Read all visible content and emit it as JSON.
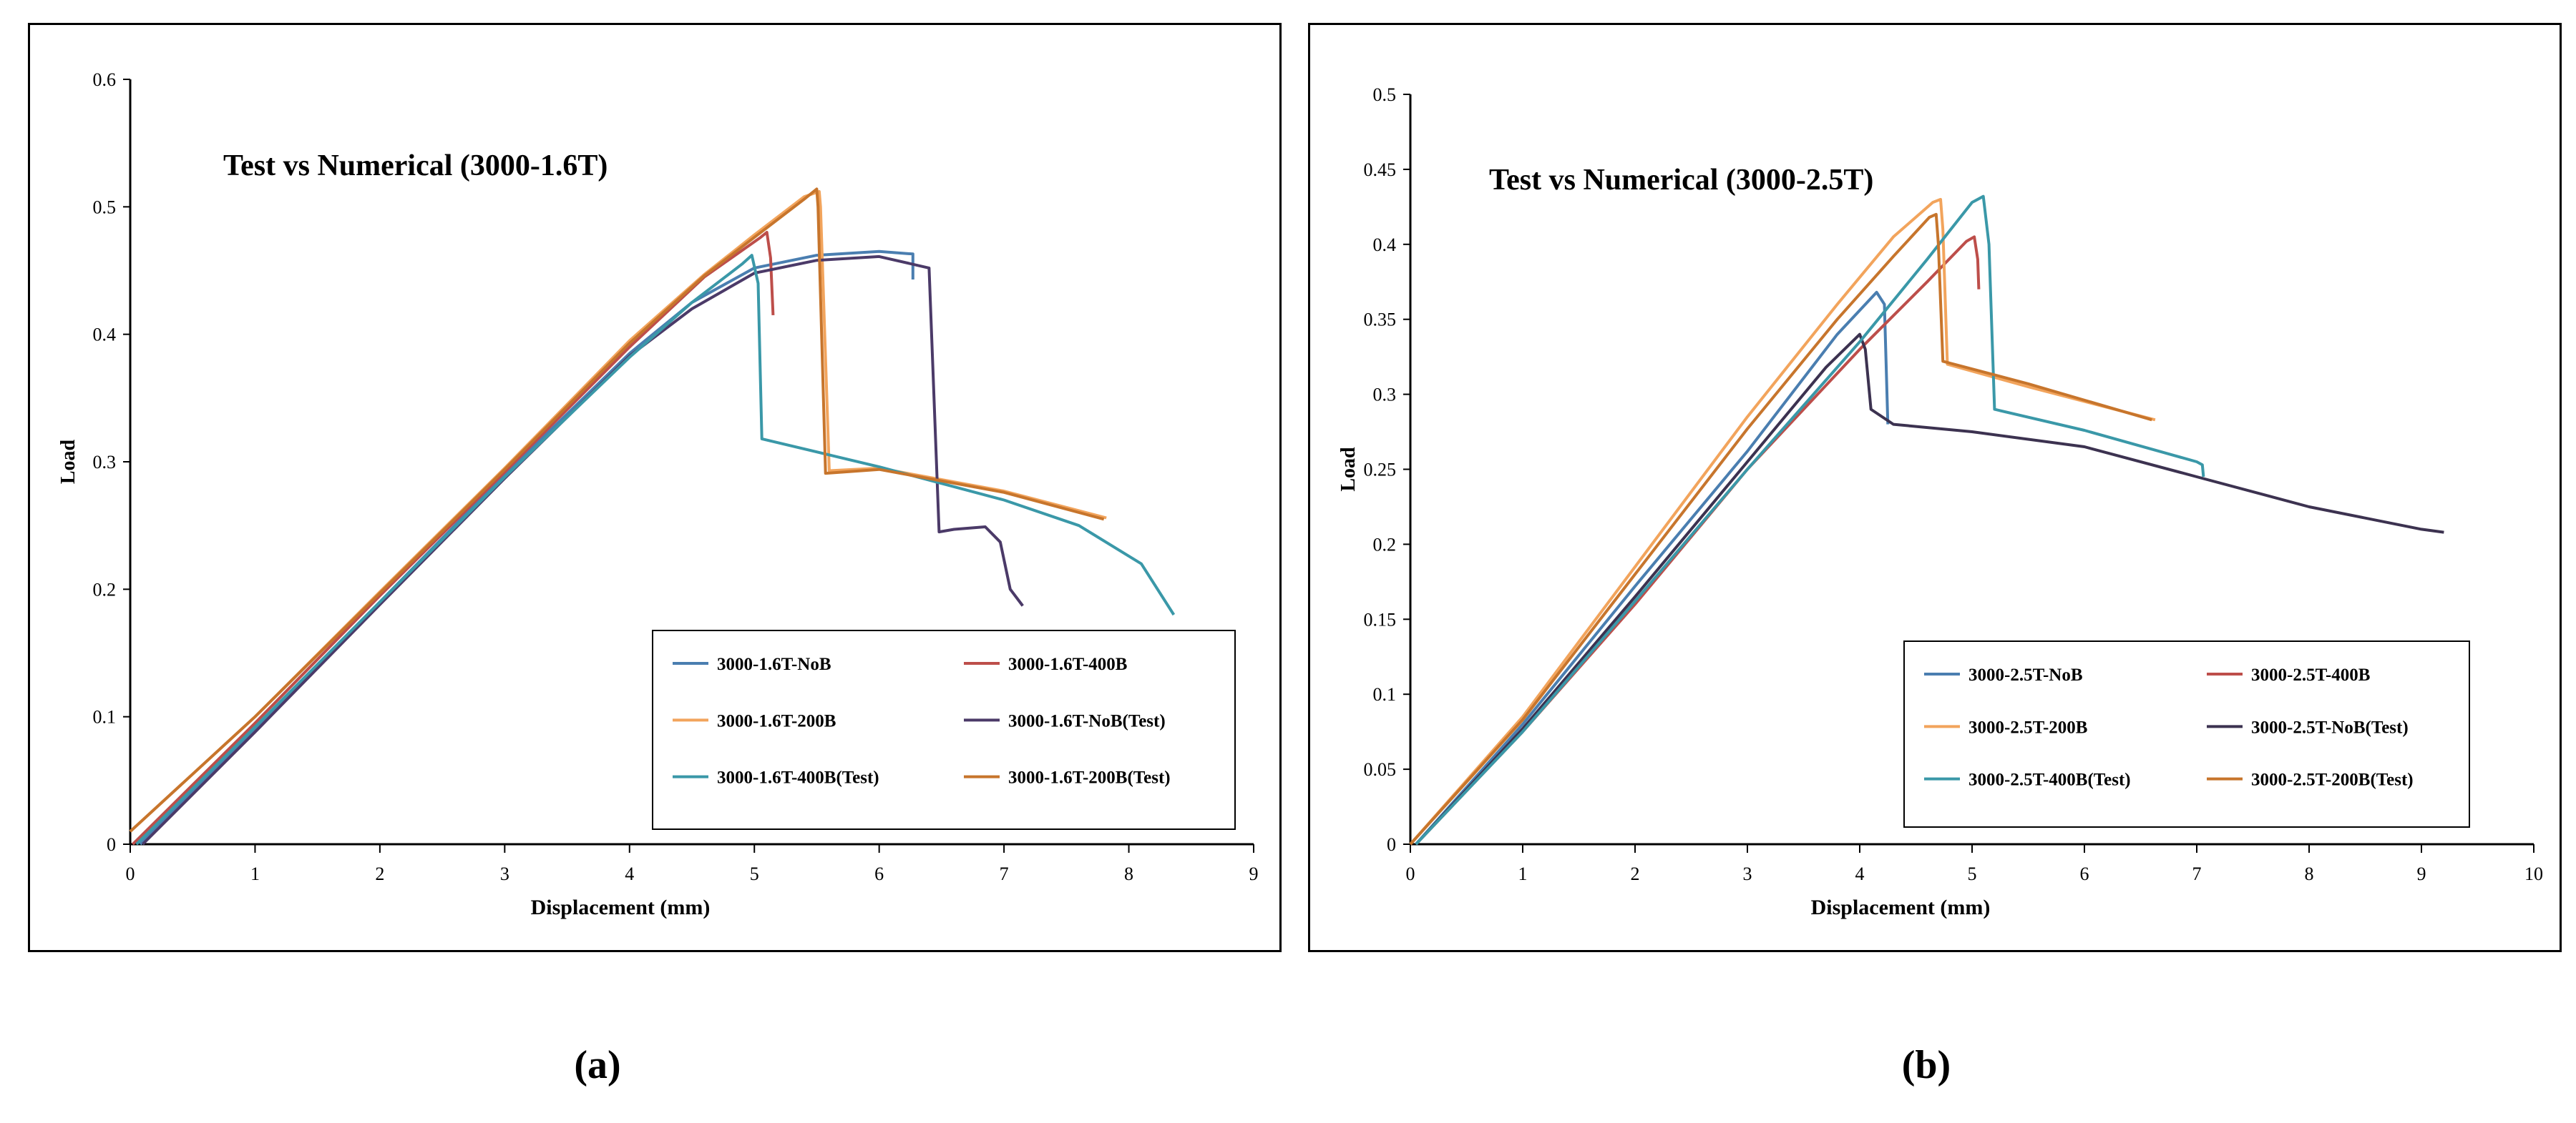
{
  "chart_data": [
    {
      "type": "line",
      "title": "Test vs Numerical (3000-1.6T)",
      "xlabel": "Displacement  (mm)",
      "ylabel": "Load",
      "xlim": [
        0,
        9
      ],
      "ylim": [
        0,
        0.6
      ],
      "xticks": [
        "0",
        "1",
        "2",
        "3",
        "4",
        "5",
        "6",
        "7",
        "8",
        "9"
      ],
      "yticks": [
        "0",
        "0.1",
        "0.2",
        "0.3",
        "0.4",
        "0.5",
        "0.6"
      ],
      "legend_position": "bottom-right",
      "series": [
        {
          "name": "3000-1.6T-NoB",
          "color": "#4a7eb0",
          "points": [
            [
              0.08,
              0
            ],
            [
              1,
              0.09
            ],
            [
              2,
              0.19
            ],
            [
              3,
              0.29
            ],
            [
              4,
              0.385
            ],
            [
              4.5,
              0.425
            ],
            [
              5,
              0.452
            ],
            [
              5.5,
              0.462
            ],
            [
              6,
              0.465
            ],
            [
              6.27,
              0.463
            ],
            [
              6.27,
              0.443
            ]
          ]
        },
        {
          "name": "3000-1.6T-400B",
          "color": "#bd4e4a",
          "points": [
            [
              0.02,
              0
            ],
            [
              1,
              0.095
            ],
            [
              2,
              0.195
            ],
            [
              3,
              0.292
            ],
            [
              4,
              0.39
            ],
            [
              4.6,
              0.445
            ],
            [
              5.05,
              0.476
            ],
            [
              5.1,
              0.48
            ],
            [
              5.13,
              0.46
            ],
            [
              5.15,
              0.415
            ]
          ]
        },
        {
          "name": "3000-1.6T-200B",
          "color": "#f2a45c",
          "points": [
            [
              0,
              0.01
            ],
            [
              1,
              0.1
            ],
            [
              2,
              0.198
            ],
            [
              3,
              0.295
            ],
            [
              4,
              0.395
            ],
            [
              4.6,
              0.447
            ],
            [
              5,
              0.478
            ],
            [
              5.4,
              0.508
            ],
            [
              5.52,
              0.512
            ],
            [
              5.53,
              0.5
            ],
            [
              5.6,
              0.293
            ],
            [
              6,
              0.295
            ],
            [
              7,
              0.277
            ],
            [
              7.82,
              0.256
            ]
          ]
        },
        {
          "name": "3000-1.6T-NoB(Test)",
          "color": "#4b3a68",
          "points": [
            [
              0.1,
              0
            ],
            [
              1,
              0.088
            ],
            [
              2,
              0.188
            ],
            [
              3,
              0.287
            ],
            [
              4,
              0.383
            ],
            [
              4.5,
              0.42
            ],
            [
              5,
              0.448
            ],
            [
              5.5,
              0.458
            ],
            [
              6,
              0.461
            ],
            [
              6.4,
              0.452
            ],
            [
              6.48,
              0.245
            ],
            [
              6.6,
              0.247
            ],
            [
              6.85,
              0.249
            ],
            [
              6.97,
              0.237
            ],
            [
              7.05,
              0.2
            ],
            [
              7.15,
              0.187
            ]
          ]
        },
        {
          "name": "3000-1.6T-400B(Test)",
          "color": "#3a98a8",
          "points": [
            [
              0.05,
              0
            ],
            [
              1,
              0.092
            ],
            [
              2,
              0.19
            ],
            [
              3,
              0.288
            ],
            [
              4,
              0.382
            ],
            [
              4.5,
              0.425
            ],
            [
              4.9,
              0.455
            ],
            [
              4.98,
              0.462
            ],
            [
              5.03,
              0.44
            ],
            [
              5.06,
              0.318
            ],
            [
              6,
              0.296
            ],
            [
              7,
              0.27
            ],
            [
              7.6,
              0.25
            ],
            [
              8.1,
              0.22
            ],
            [
              8.36,
              0.18
            ]
          ]
        },
        {
          "name": "3000-1.6T-200B(Test)",
          "color": "#c7752c",
          "points": [
            [
              0,
              0.01
            ],
            [
              1,
              0.1
            ],
            [
              2,
              0.197
            ],
            [
              3,
              0.294
            ],
            [
              4,
              0.393
            ],
            [
              4.6,
              0.446
            ],
            [
              5,
              0.476
            ],
            [
              5.4,
              0.506
            ],
            [
              5.5,
              0.514
            ],
            [
              5.51,
              0.5
            ],
            [
              5.57,
              0.291
            ],
            [
              6,
              0.294
            ],
            [
              7,
              0.276
            ],
            [
              7.8,
              0.255
            ]
          ]
        }
      ]
    },
    {
      "type": "line",
      "title": "Test vs Numerical (3000-2.5T)",
      "xlabel": "Displacement  (mm)",
      "ylabel": "Load",
      "xlim": [
        0,
        10
      ],
      "ylim": [
        0,
        0.5
      ],
      "xticks": [
        "0",
        "1",
        "2",
        "3",
        "4",
        "5",
        "6",
        "7",
        "8",
        "9",
        "10"
      ],
      "yticks": [
        "0",
        "0.05",
        "0.1",
        "0.15",
        "0.2",
        "0.25",
        "0.3",
        "0.35",
        "0.4",
        "0.45",
        "0.5"
      ],
      "legend_position": "bottom-right",
      "series": [
        {
          "name": "3000-2.5T-NoB",
          "color": "#4a7eb0",
          "points": [
            [
              0.05,
              0
            ],
            [
              1,
              0.08
            ],
            [
              2,
              0.172
            ],
            [
              3,
              0.262
            ],
            [
              3.8,
              0.34
            ],
            [
              4.15,
              0.368
            ],
            [
              4.22,
              0.36
            ],
            [
              4.25,
              0.28
            ]
          ]
        },
        {
          "name": "3000-2.5T-400B",
          "color": "#bd4e4a",
          "points": [
            [
              0.05,
              0
            ],
            [
              1,
              0.075
            ],
            [
              2,
              0.16
            ],
            [
              3,
              0.25
            ],
            [
              4,
              0.33
            ],
            [
              4.6,
              0.375
            ],
            [
              4.95,
              0.402
            ],
            [
              5.02,
              0.405
            ],
            [
              5.05,
              0.39
            ],
            [
              5.06,
              0.37
            ]
          ]
        },
        {
          "name": "3000-2.5T-200B",
          "color": "#f2a45c",
          "points": [
            [
              0,
              0
            ],
            [
              1,
              0.085
            ],
            [
              2,
              0.185
            ],
            [
              3,
              0.285
            ],
            [
              3.8,
              0.36
            ],
            [
              4.3,
              0.405
            ],
            [
              4.65,
              0.428
            ],
            [
              4.72,
              0.43
            ],
            [
              4.74,
              0.41
            ],
            [
              4.78,
              0.32
            ],
            [
              5.5,
              0.305
            ],
            [
              6.63,
              0.283
            ]
          ]
        },
        {
          "name": "3000-2.5T-NoB(Test)",
          "color": "#3c3250",
          "points": [
            [
              0.05,
              0
            ],
            [
              1,
              0.077
            ],
            [
              2,
              0.165
            ],
            [
              3,
              0.255
            ],
            [
              3.7,
              0.318
            ],
            [
              4,
              0.34
            ],
            [
              4.05,
              0.33
            ],
            [
              4.1,
              0.29
            ],
            [
              4.3,
              0.28
            ],
            [
              5,
              0.275
            ],
            [
              6,
              0.265
            ],
            [
              7,
              0.245
            ],
            [
              8,
              0.225
            ],
            [
              9,
              0.21
            ],
            [
              9.2,
              0.208
            ]
          ]
        },
        {
          "name": "3000-2.5T-400B(Test)",
          "color": "#3a98a8",
          "points": [
            [
              0.05,
              0
            ],
            [
              1,
              0.075
            ],
            [
              2,
              0.162
            ],
            [
              3,
              0.25
            ],
            [
              4,
              0.335
            ],
            [
              4.6,
              0.39
            ],
            [
              5,
              0.428
            ],
            [
              5.1,
              0.432
            ],
            [
              5.15,
              0.4
            ],
            [
              5.2,
              0.29
            ],
            [
              6,
              0.276
            ],
            [
              7,
              0.255
            ],
            [
              7.05,
              0.253
            ],
            [
              7.06,
              0.245
            ]
          ]
        },
        {
          "name": "3000-2.5T-200B(Test)",
          "color": "#c7752c",
          "points": [
            [
              0,
              0
            ],
            [
              1,
              0.083
            ],
            [
              2,
              0.18
            ],
            [
              3,
              0.277
            ],
            [
              3.8,
              0.35
            ],
            [
              4.3,
              0.392
            ],
            [
              4.62,
              0.418
            ],
            [
              4.68,
              0.42
            ],
            [
              4.7,
              0.4
            ],
            [
              4.74,
              0.322
            ],
            [
              5.5,
              0.307
            ],
            [
              6.6,
              0.283
            ]
          ]
        }
      ]
    }
  ],
  "figure_labels": {
    "a": "(a)",
    "b": "(b)"
  }
}
